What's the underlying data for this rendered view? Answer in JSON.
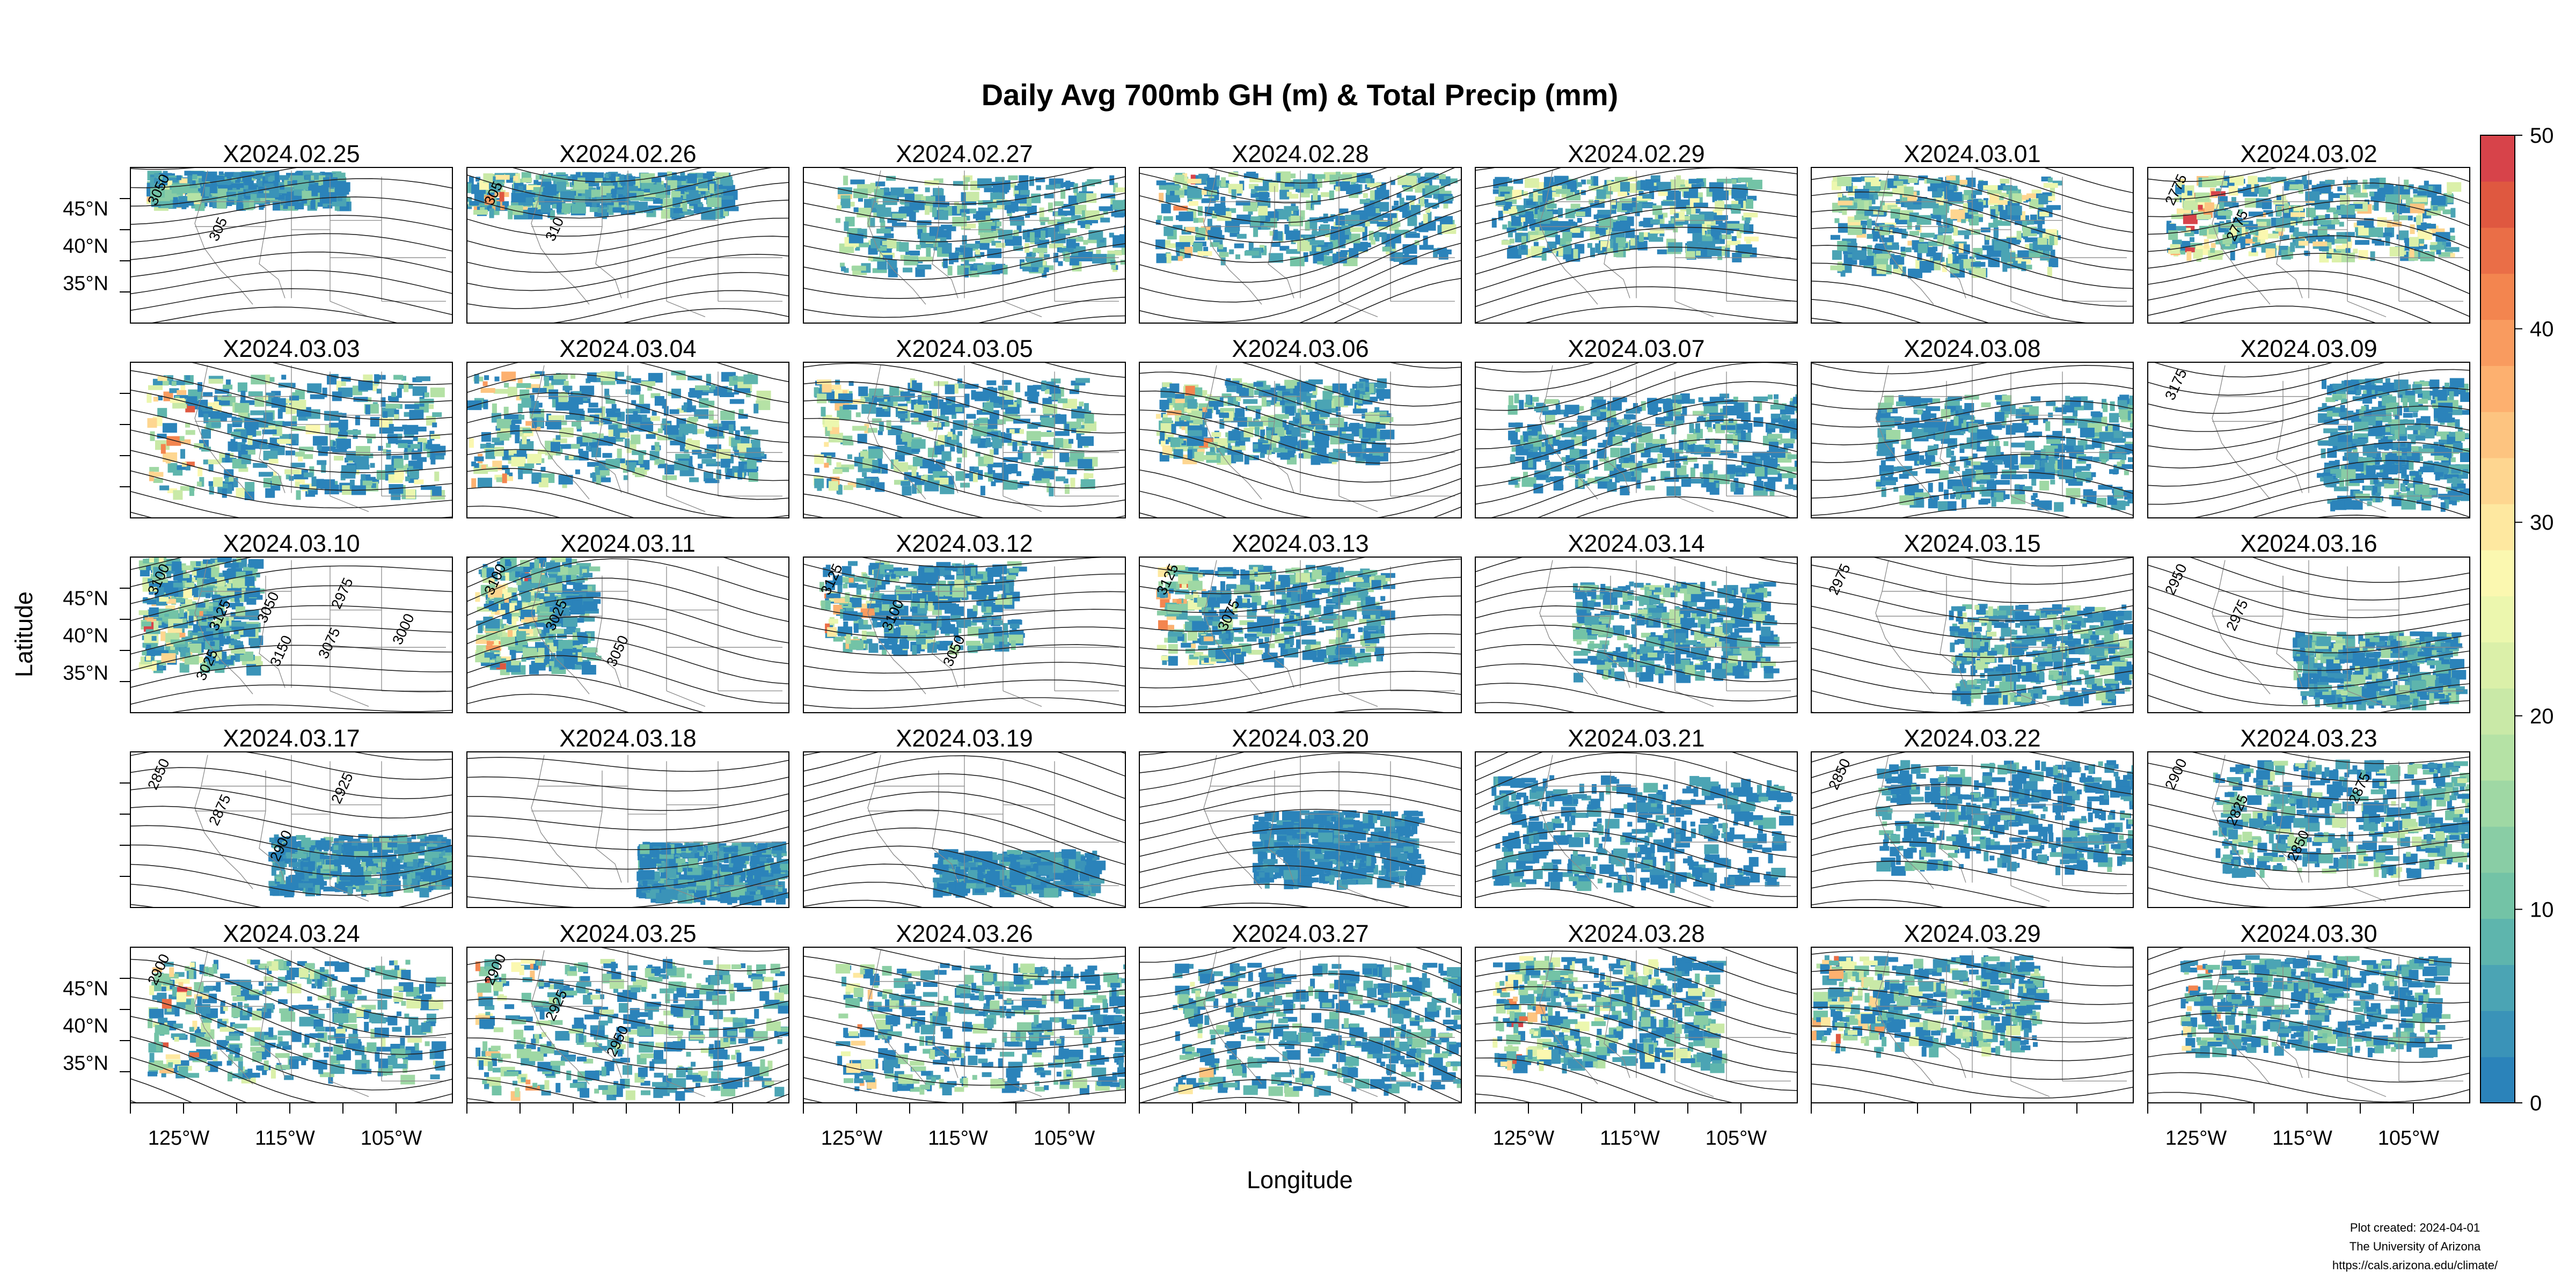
{
  "title": "Daily Avg 700mb GH (m) & Total Precip (mm)",
  "xlabel": "Longitude",
  "ylabel": "Latitude",
  "panels": [
    "X2024.02.25",
    "X2024.02.26",
    "X2024.02.27",
    "X2024.02.28",
    "X2024.02.29",
    "X2024.03.01",
    "X2024.03.02",
    "X2024.03.03",
    "X2024.03.04",
    "X2024.03.05",
    "X2024.03.06",
    "X2024.03.07",
    "X2024.03.08",
    "X2024.03.09",
    "X2024.03.10",
    "X2024.03.11",
    "X2024.03.12",
    "X2024.03.13",
    "X2024.03.14",
    "X2024.03.15",
    "X2024.03.16",
    "X2024.03.17",
    "X2024.03.18",
    "X2024.03.19",
    "X2024.03.20",
    "X2024.03.21",
    "X2024.03.22",
    "X2024.03.23",
    "X2024.03.24",
    "X2024.03.25",
    "X2024.03.26",
    "X2024.03.27",
    "X2024.03.28",
    "X2024.03.29",
    "X2024.03.30"
  ],
  "lat_ticks": [
    "45°N",
    "40°N",
    "35°N"
  ],
  "lon_ticks": [
    "125°W",
    "115°W",
    "105°W"
  ],
  "colorbar": {
    "min": 0,
    "max": 50,
    "ticks": [
      "0",
      "10",
      "20",
      "30",
      "40",
      "50"
    ],
    "colors": [
      "#2b83ba",
      "#3a93b8",
      "#4ba4b4",
      "#5eb5ad",
      "#73c3a6",
      "#89cda5",
      "#9fd8a4",
      "#b5e2a5",
      "#c9e9a7",
      "#dbf0a9",
      "#ecf7ae",
      "#fbf8b0",
      "#fee8a0",
      "#fed690",
      "#fdc480",
      "#fdb06f",
      "#f99b5f",
      "#f3854f",
      "#ea6e47",
      "#df5840",
      "#d7434a"
    ]
  },
  "contour_labels": {
    "0": [
      "3050",
      "305"
    ],
    "1": [
      "305",
      "310"
    ],
    "6": [
      "2775",
      "2775"
    ],
    "13": [
      "3175"
    ],
    "14": [
      "3100",
      "3125",
      "3150",
      "2975",
      "3000",
      "3025",
      "3050",
      "3075"
    ],
    "15": [
      "3100",
      "3025",
      "3050"
    ],
    "16": [
      "3125",
      "3100",
      "3050"
    ],
    "17": [
      "3125",
      "3075"
    ],
    "19": [
      "2975"
    ],
    "20": [
      "2950",
      "2975"
    ],
    "21": [
      "2850",
      "2875",
      "2900",
      "2925"
    ],
    "26": [
      "2850"
    ],
    "27": [
      "2900",
      "2825",
      "2850",
      "2875"
    ],
    "28": [
      "2900"
    ],
    "29": [
      "2900",
      "2925",
      "2950"
    ]
  },
  "footer": [
    "Plot created: 2024-04-01",
    "The University of Arizona",
    "https://cals.arizona.edu/climate/"
  ]
}
